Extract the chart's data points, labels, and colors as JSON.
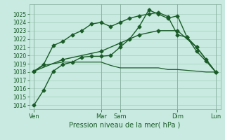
{
  "xlabel": "Pression niveau de la mer( hPa )",
  "background_color": "#c8eae0",
  "grid_color": "#a0c8b8",
  "line_color": "#1a5c28",
  "ylim": [
    1013.5,
    1026.2
  ],
  "yticks": [
    1014,
    1015,
    1016,
    1017,
    1018,
    1019,
    1020,
    1021,
    1022,
    1023,
    1024,
    1025
  ],
  "xlim": [
    0,
    20
  ],
  "xtick_positions": [
    0.5,
    7.5,
    9.5,
    15.5,
    19.5
  ],
  "xtick_labels": [
    "Ven",
    "Mar",
    "Sam",
    "Dim",
    "Lun"
  ],
  "vline_positions": [
    0.5,
    7.5,
    9.5,
    15.5,
    19.5
  ],
  "series": [
    {
      "x": [
        0.5,
        1.5,
        2.5,
        3.5,
        4.5,
        5.5,
        6.5,
        7.5,
        8.5,
        9.5,
        10.5,
        11.5,
        12.5,
        13.5,
        14.5,
        15.5,
        16.5,
        17.5,
        18.5,
        19.5
      ],
      "y": [
        1014.0,
        1015.8,
        1018.1,
        1018.9,
        1019.2,
        1019.8,
        1019.9,
        1019.9,
        1020.0,
        1021.0,
        1022.0,
        1023.5,
        1025.5,
        1025.0,
        1024.5,
        1024.8,
        1022.2,
        1021.0,
        1019.5,
        1018.0
      ],
      "marker": "D",
      "markersize": 2.5,
      "linewidth": 1.0
    },
    {
      "x": [
        0.5,
        1.5,
        2.5,
        3.5,
        4.5,
        5.5,
        6.5,
        7.5,
        8.5,
        9.5,
        10.5,
        11.5,
        12.5,
        13.5,
        14.5,
        15.5,
        16.5,
        17.5,
        18.5,
        19.5
      ],
      "y": [
        1018.1,
        1018.9,
        1021.2,
        1021.7,
        1022.5,
        1023.0,
        1023.8,
        1024.0,
        1023.5,
        1024.0,
        1024.5,
        1024.8,
        1025.0,
        1025.2,
        1024.7,
        1022.5,
        1022.2,
        1020.5,
        1019.3,
        1018.0
      ],
      "marker": "D",
      "markersize": 2.5,
      "linewidth": 1.0
    },
    {
      "x": [
        0.5,
        3.5,
        7.5,
        9.5,
        11.5,
        13.5,
        15.5,
        17.5,
        19.5
      ],
      "y": [
        1018.1,
        1019.5,
        1020.5,
        1021.5,
        1022.5,
        1023.0,
        1023.0,
        1021.0,
        1018.0
      ],
      "marker": "D",
      "markersize": 2.5,
      "linewidth": 1.0
    },
    {
      "x": [
        0.5,
        1.5,
        2.5,
        3.5,
        4.5,
        5.5,
        6.5,
        7.5,
        8.5,
        9.5,
        10.5,
        11.5,
        12.5,
        13.5,
        14.5,
        15.5,
        16.5,
        17.5,
        18.5,
        19.5
      ],
      "y": [
        1018.1,
        1018.8,
        1019.0,
        1019.2,
        1019.2,
        1019.2,
        1019.2,
        1019.2,
        1018.8,
        1018.5,
        1018.5,
        1018.5,
        1018.5,
        1018.5,
        1018.3,
        1018.3,
        1018.2,
        1018.1,
        1018.0,
        1018.0
      ],
      "marker": null,
      "markersize": 0,
      "linewidth": 0.9
    }
  ]
}
